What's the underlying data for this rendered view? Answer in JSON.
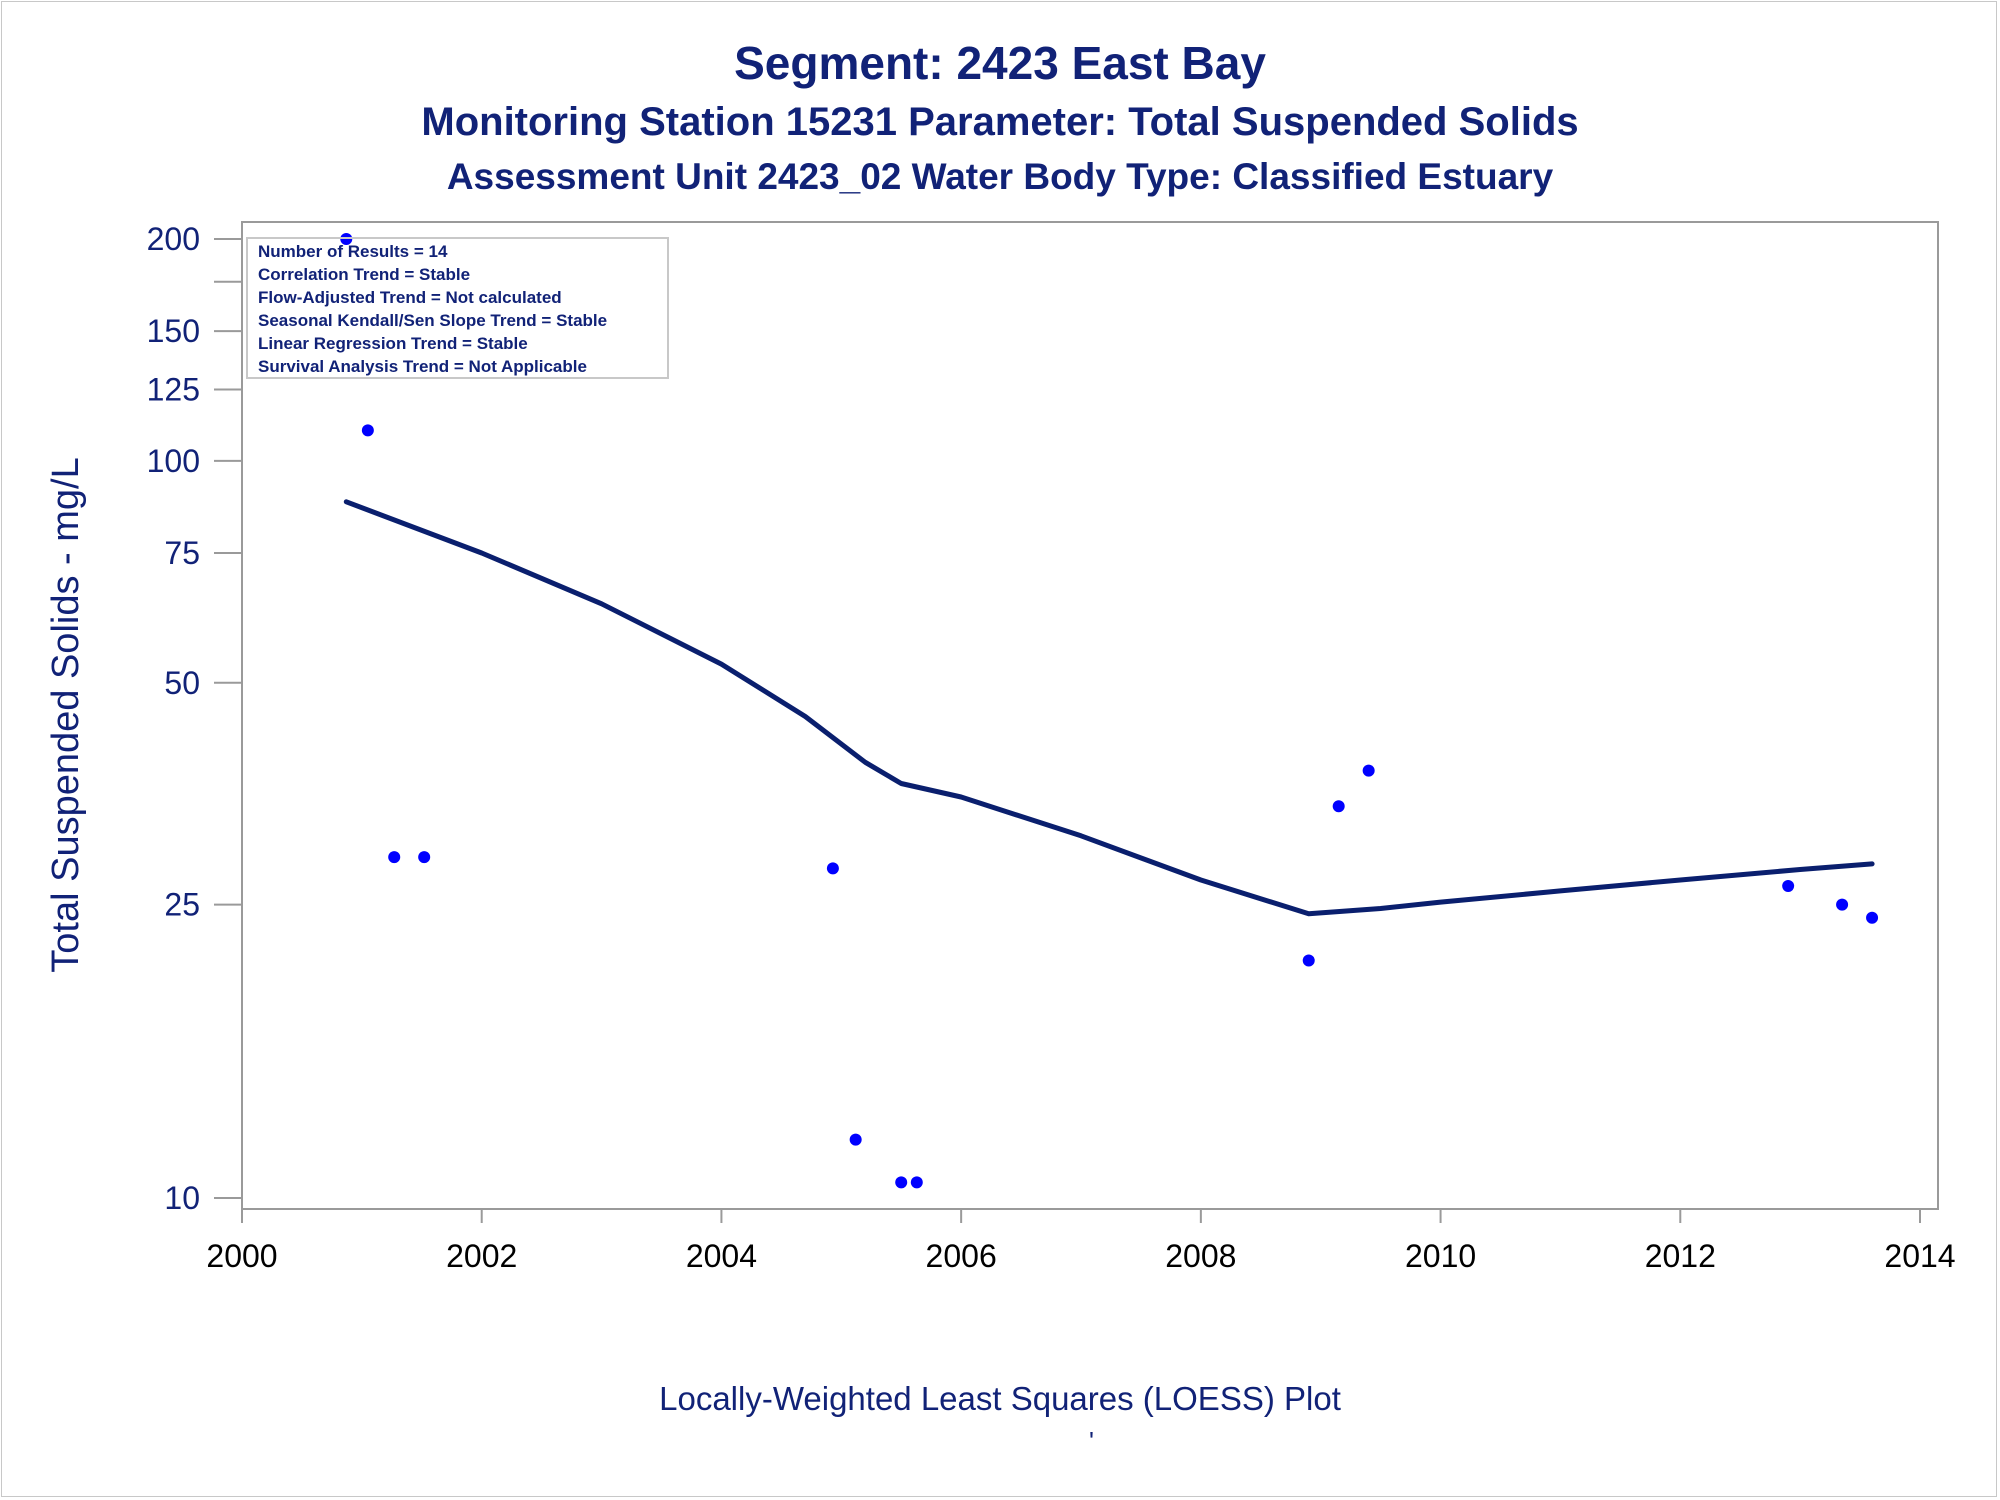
{
  "titles": {
    "line1": "Segment: 2423  East Bay",
    "line2": "Monitoring Station 15231 Parameter: Total Suspended Solids",
    "line3": "Assessment Unit 2423_02   Water Body Type: Classified Estuary"
  },
  "footnote": "Locally-Weighted Least Squares (LOESS) Plot",
  "footnote_mark": "'",
  "stats_box": [
    "Number of Results = 14",
    "Correlation Trend = Stable",
    "Flow-Adjusted Trend = Not calculated",
    "Seasonal Kendall/Sen Slope Trend = Stable",
    "Linear Regression Trend = Stable",
    "Survival Analysis Trend = Not Applicable"
  ],
  "colors": {
    "text": "#112277",
    "points": "#0000ff",
    "loess_line": "#0a1f6e",
    "frame": "#9a9a9a"
  },
  "chart_data": {
    "type": "scatter",
    "xlabel": "",
    "ylabel": "Total Suspended Solids - mg/L",
    "yscale": "log",
    "xlim": [
      2000,
      2014
    ],
    "ylim": [
      10,
      200
    ],
    "x_ticks": [
      2000,
      2002,
      2004,
      2006,
      2008,
      2010,
      2012,
      2014
    ],
    "y_ticks": [
      10,
      25,
      50,
      75,
      100,
      125,
      150,
      200
    ],
    "y_tick_labels": [
      "10",
      "25",
      "50",
      "75",
      "100",
      "125",
      "150",
      "200"
    ],
    "grid": false,
    "legend": "none",
    "series": [
      {
        "type": "scatter",
        "x": [
          2000.87,
          2001.05,
          2001.27,
          2001.52,
          2004.93,
          2005.12,
          2005.5,
          2005.63,
          2008.9,
          2009.15,
          2009.4,
          2012.9,
          2013.35,
          2013.6
        ],
        "y": [
          200,
          110,
          29,
          29,
          28,
          12,
          10.5,
          10.5,
          21,
          34,
          38,
          26.5,
          25,
          24
        ]
      },
      {
        "type": "line",
        "x": [
          2000.87,
          2002.0,
          2003.0,
          2004.0,
          2004.7,
          2005.2,
          2005.5,
          2006.0,
          2007.0,
          2008.0,
          2008.9,
          2009.5,
          2010.0,
          2011.0,
          2012.0,
          2013.0,
          2013.6
        ],
        "y": [
          88,
          75,
          64,
          53,
          45,
          39,
          36.5,
          35,
          31,
          27,
          24.3,
          24.7,
          25.2,
          26.1,
          27,
          27.9,
          28.4
        ]
      }
    ]
  }
}
